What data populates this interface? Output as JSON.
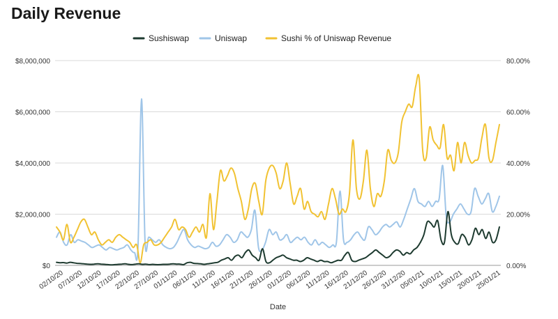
{
  "chart_data": {
    "type": "line",
    "title": "Daily Revenue",
    "xlabel": "Date",
    "ylabel": "",
    "y2label": "",
    "ylim": [
      0,
      8000000
    ],
    "y2lim": [
      0,
      80
    ],
    "yticks": [
      "$0",
      "$2,000,000",
      "$4,000,000",
      "$6,000,000",
      "$8,000,000"
    ],
    "y2ticks": [
      "0.00%",
      "20.00%",
      "40.00%",
      "60.00%",
      "80.00%"
    ],
    "xticks": [
      "02/10/20",
      "07/10/20",
      "12/10/20",
      "17/10/20",
      "22/10/20",
      "27/10/20",
      "01/11/20",
      "06/11/20",
      "11/11/20",
      "16/11/20",
      "21/11/20",
      "26/11/20",
      "01/12/20",
      "06/12/20",
      "11/12/20",
      "16/12/20",
      "21/12/20",
      "26/12/20",
      "31/12/20",
      "05/01/21",
      "10/01/21",
      "15/01/21",
      "20/01/21",
      "25/01/21"
    ],
    "grid": true,
    "legend_position": "top",
    "series": [
      {
        "name": "Sushiswap",
        "axis": "left",
        "color": "#1d3a2f",
        "values": [
          120000,
          100000,
          110000,
          90000,
          120000,
          100000,
          80000,
          70000,
          60000,
          50000,
          40000,
          50000,
          60000,
          50000,
          40000,
          30000,
          20000,
          30000,
          40000,
          50000,
          60000,
          40000,
          30000,
          50000,
          60000,
          40000,
          50000,
          30000,
          40000,
          30000,
          30000,
          40000,
          40000,
          50000,
          60000,
          50000,
          50000,
          30000,
          100000,
          120000,
          80000,
          70000,
          60000,
          40000,
          60000,
          80000,
          100000,
          120000,
          200000,
          250000,
          300000,
          200000,
          350000,
          400000,
          300000,
          500000,
          600000,
          400000,
          300000,
          200000,
          650000,
          150000,
          100000,
          200000,
          300000,
          350000,
          400000,
          300000,
          250000,
          200000,
          200000,
          150000,
          200000,
          300000,
          250000,
          200000,
          150000,
          200000,
          150000,
          150000,
          100000,
          150000,
          200000,
          200000,
          400000,
          500000,
          200000,
          150000,
          200000,
          250000,
          300000,
          400000,
          500000,
          600000,
          500000,
          400000,
          300000,
          350000,
          500000,
          600000,
          550000,
          400000,
          500000,
          450000,
          600000,
          700000,
          900000,
          1200000,
          1700000,
          1650000,
          1500000,
          1750000,
          1000000,
          900000,
          2100000,
          1200000,
          900000,
          850000,
          1200000,
          1100000,
          800000,
          1000000,
          1450000,
          1200000,
          1400000,
          1050000,
          1300000,
          900000,
          1000000,
          1500000
        ],
        "x_start": "02/10/20",
        "x_end": "25/01/21"
      },
      {
        "name": "Uniswap",
        "axis": "left",
        "color": "#9fc5e8",
        "values": [
          1100000,
          1300000,
          900000,
          800000,
          1200000,
          900000,
          1000000,
          950000,
          900000,
          800000,
          700000,
          750000,
          800000,
          700000,
          600000,
          700000,
          650000,
          600000,
          650000,
          700000,
          800000,
          600000,
          500000,
          700000,
          6500000,
          900000,
          1100000,
          1000000,
          900000,
          1000000,
          800000,
          700000,
          650000,
          700000,
          900000,
          1200000,
          1400000,
          1000000,
          800000,
          700000,
          750000,
          700000,
          650000,
          700000,
          900000,
          750000,
          800000,
          1000000,
          1200000,
          1100000,
          900000,
          1000000,
          1300000,
          1200000,
          1100000,
          1400000,
          2150000,
          700000,
          600000,
          900000,
          1400000,
          1200000,
          1300000,
          1000000,
          1050000,
          1200000,
          900000,
          1000000,
          1100000,
          1000000,
          1100000,
          900000,
          800000,
          1000000,
          800000,
          900000,
          800000,
          700000,
          800000,
          900000,
          2900000,
          1000000,
          900000,
          1000000,
          1200000,
          1300000,
          1100000,
          1000000,
          1500000,
          1400000,
          1200000,
          1300000,
          1500000,
          1600000,
          1500000,
          1600000,
          1700000,
          1500000,
          1800000,
          2200000,
          2600000,
          3000000,
          2500000,
          2400000,
          2300000,
          2500000,
          2300000,
          2500000,
          2600000,
          3900000,
          1900000,
          1700000,
          2000000,
          2200000,
          2400000,
          2200000,
          2000000,
          2100000,
          3000000,
          2700000,
          2400000,
          2600000,
          2800000,
          2100000,
          2300000,
          2700000
        ],
        "x_start": "02/10/20",
        "x_end": "25/01/21"
      },
      {
        "name": "Sushi % of Uniswap Revenue",
        "axis": "right",
        "color": "#f1c232",
        "values": [
          15,
          13,
          10,
          16,
          9,
          11,
          14,
          17,
          18,
          15,
          12,
          13,
          10,
          8,
          9,
          10,
          9,
          11,
          12,
          11,
          10,
          9,
          7,
          8,
          1,
          8,
          9,
          10,
          8,
          8,
          9,
          11,
          13,
          15,
          18,
          14,
          15,
          14,
          11,
          13,
          15,
          13,
          16,
          11,
          28,
          14,
          25,
          37,
          33,
          35,
          38,
          36,
          30,
          25,
          18,
          22,
          30,
          32,
          25,
          20,
          33,
          38,
          39,
          36,
          30,
          33,
          40,
          32,
          24,
          27,
          30,
          22,
          25,
          21,
          20,
          19,
          21,
          18,
          24,
          30,
          26,
          20,
          22,
          21,
          28,
          49,
          30,
          26,
          33,
          45,
          30,
          23,
          28,
          27,
          33,
          45,
          41,
          40,
          44,
          56,
          60,
          63,
          62,
          70,
          73,
          45,
          42,
          54,
          49,
          47,
          46,
          55,
          42,
          43,
          37,
          48,
          40,
          48,
          43,
          40,
          41,
          42,
          50,
          55,
          42,
          41,
          48,
          55
        ]
      }
    ]
  }
}
